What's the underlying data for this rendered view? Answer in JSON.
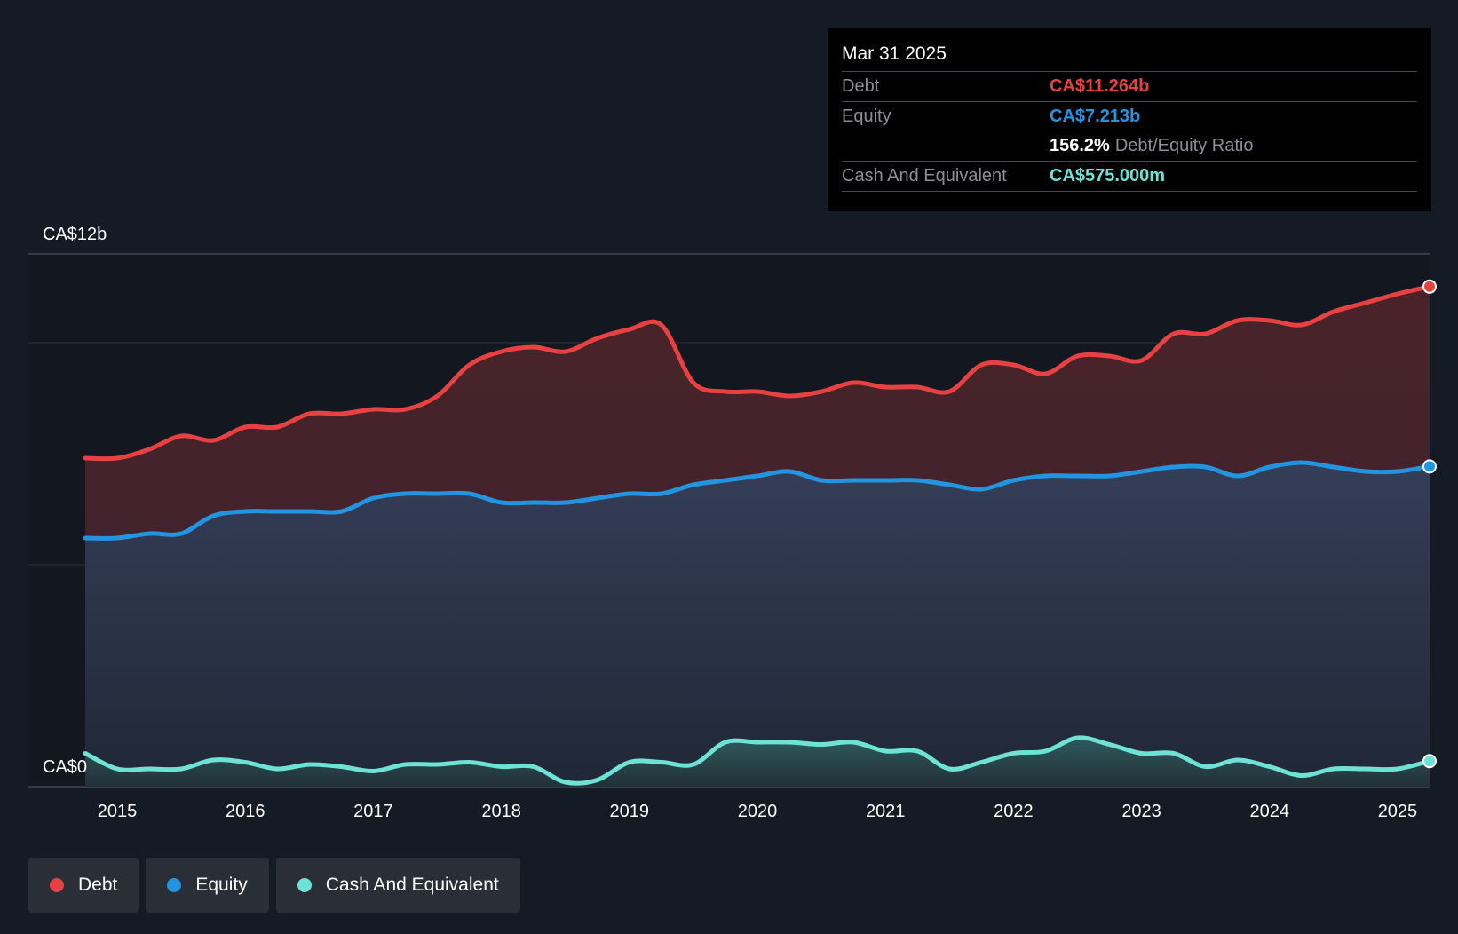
{
  "tooltip": {
    "date": "Mar 31 2025",
    "debt_label": "Debt",
    "debt_value": "CA$11.264b",
    "equity_label": "Equity",
    "equity_value": "CA$7.213b",
    "ratio_value": "156.2%",
    "ratio_label": "Debt/Equity Ratio",
    "cash_label": "Cash And Equivalent",
    "cash_value": "CA$575.000m"
  },
  "legend": {
    "debt": "Debt",
    "equity": "Equity",
    "cash": "Cash And Equivalent"
  },
  "colors": {
    "debt": "#e84142",
    "equity": "#2394df",
    "cash": "#6ee2d4",
    "background": "#151b24"
  },
  "chart_data": {
    "type": "area",
    "title": "",
    "ylabel_top": "CA$12b",
    "ylabel_bottom": "CA$0",
    "ylim": [
      0,
      12
    ],
    "xlim": [
      2014.25,
      2025.25
    ],
    "x_ticks": [
      "2015",
      "2016",
      "2017",
      "2018",
      "2019",
      "2020",
      "2021",
      "2022",
      "2023",
      "2024",
      "2025"
    ],
    "x": [
      2014.75,
      2015.0,
      2015.25,
      2015.5,
      2015.75,
      2016.0,
      2016.25,
      2016.5,
      2016.75,
      2017.0,
      2017.25,
      2017.5,
      2017.75,
      2018.0,
      2018.25,
      2018.5,
      2018.75,
      2019.0,
      2019.25,
      2019.5,
      2019.75,
      2020.0,
      2020.25,
      2020.5,
      2020.75,
      2021.0,
      2021.25,
      2021.5,
      2021.75,
      2022.0,
      2022.25,
      2022.5,
      2022.75,
      2023.0,
      2023.25,
      2023.5,
      2023.75,
      2024.0,
      2024.25,
      2024.5,
      2024.75,
      2025.0,
      2025.25
    ],
    "series": [
      {
        "name": "Debt",
        "values": [
          7.4,
          7.4,
          7.6,
          7.9,
          7.8,
          8.1,
          8.1,
          8.4,
          8.4,
          8.5,
          8.5,
          8.8,
          9.5,
          9.8,
          9.9,
          9.8,
          10.1,
          10.3,
          10.4,
          9.1,
          8.9,
          8.9,
          8.8,
          8.9,
          9.1,
          9.0,
          9.0,
          8.9,
          9.5,
          9.5,
          9.3,
          9.7,
          9.7,
          9.6,
          10.2,
          10.2,
          10.5,
          10.5,
          10.4,
          10.7,
          10.9,
          11.1,
          11.264
        ]
      },
      {
        "name": "Equity",
        "values": [
          5.6,
          5.6,
          5.7,
          5.7,
          6.1,
          6.2,
          6.2,
          6.2,
          6.2,
          6.5,
          6.6,
          6.6,
          6.6,
          6.4,
          6.4,
          6.4,
          6.5,
          6.6,
          6.6,
          6.8,
          6.9,
          7.0,
          7.1,
          6.9,
          6.9,
          6.9,
          6.9,
          6.8,
          6.7,
          6.9,
          7.0,
          7.0,
          7.0,
          7.1,
          7.2,
          7.2,
          7.0,
          7.2,
          7.3,
          7.2,
          7.1,
          7.1,
          7.213
        ]
      },
      {
        "name": "Cash And Equivalent",
        "values": [
          0.75,
          0.4,
          0.4,
          0.4,
          0.6,
          0.55,
          0.4,
          0.5,
          0.45,
          0.35,
          0.5,
          0.5,
          0.55,
          0.45,
          0.45,
          0.1,
          0.15,
          0.55,
          0.55,
          0.5,
          1.0,
          1.0,
          1.0,
          0.95,
          1.0,
          0.8,
          0.8,
          0.4,
          0.55,
          0.75,
          0.8,
          1.1,
          0.95,
          0.75,
          0.75,
          0.45,
          0.6,
          0.45,
          0.25,
          0.4,
          0.4,
          0.4,
          0.575
        ]
      }
    ]
  }
}
